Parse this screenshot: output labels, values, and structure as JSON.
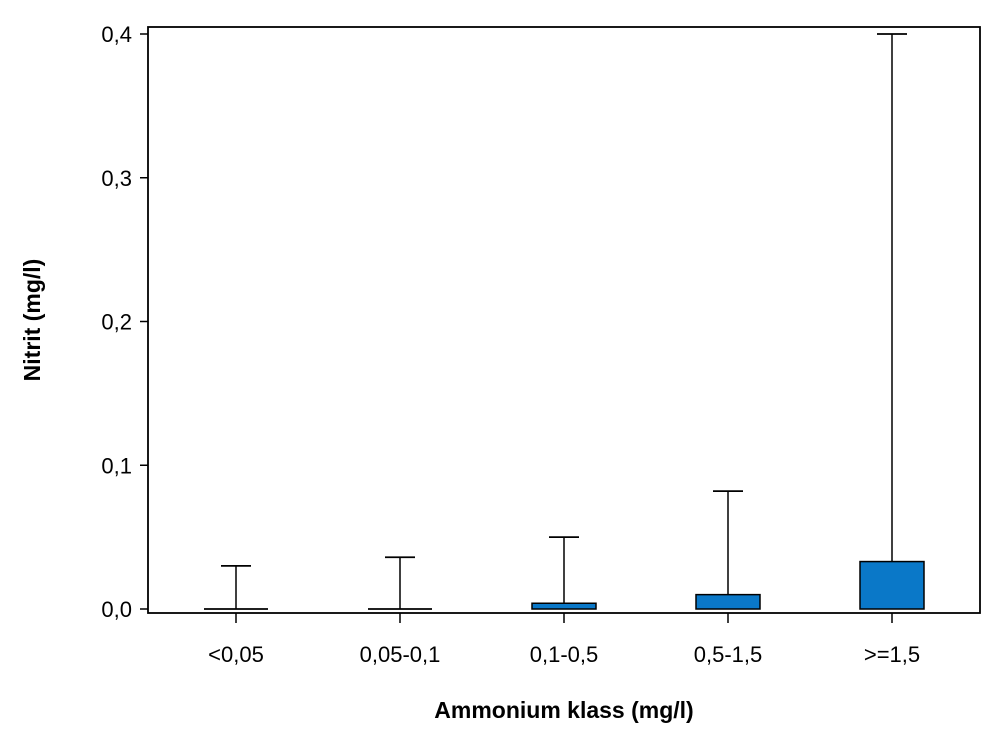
{
  "chart_data": {
    "type": "bar",
    "xlabel": "Ammonium klass (mg/l)",
    "ylabel": "Nitrit (mg/l)",
    "ylim": [
      0,
      0.4
    ],
    "yticks": [
      0.0,
      0.1,
      0.2,
      0.3,
      0.4
    ],
    "ytick_labels": [
      "0,0",
      "0,1",
      "0,2",
      "0,3",
      "0,4"
    ],
    "categories": [
      "<0,05",
      "0,05-0,1",
      "0,1-0,5",
      "0,5-1,5",
      ">=1,5"
    ],
    "box_low": [
      0,
      0,
      0,
      0,
      0
    ],
    "box_high": [
      0.0,
      0.0,
      0.004,
      0.01,
      0.033
    ],
    "whisker_high": [
      0.03,
      0.036,
      0.05,
      0.082,
      0.4
    ],
    "grid": false,
    "legend": "none",
    "colors": {
      "box_fill": "#0a78c8",
      "stroke": "#000000",
      "background": "#ffffff"
    }
  }
}
